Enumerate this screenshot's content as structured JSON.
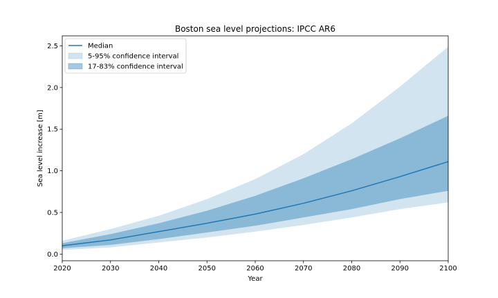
{
  "chart_data": {
    "type": "area",
    "title": "Boston sea level projections: IPCC AR6",
    "xlabel": "Year",
    "ylabel": "Sea level increase [m]",
    "xlim": [
      2020,
      2100
    ],
    "ylim": [
      -0.08,
      2.62
    ],
    "xticks": [
      2020,
      2030,
      2040,
      2050,
      2060,
      2070,
      2080,
      2090,
      2100
    ],
    "yticks": [
      0.0,
      0.5,
      1.0,
      1.5,
      2.0,
      2.5
    ],
    "ytick_labels": [
      "0.0",
      "0.5",
      "1.0",
      "1.5",
      "2.0",
      "2.5"
    ],
    "legend_position": "top-left",
    "x": [
      2020,
      2030,
      2040,
      2050,
      2060,
      2070,
      2080,
      2090,
      2100
    ],
    "series": [
      {
        "name": "5-95% confidence interval",
        "kind": "band",
        "color": "#1f77b4",
        "opacity": 0.2,
        "lower": [
          0.05,
          0.08,
          0.14,
          0.2,
          0.27,
          0.35,
          0.44,
          0.54,
          0.62
        ],
        "upper": [
          0.16,
          0.3,
          0.46,
          0.66,
          0.9,
          1.2,
          1.57,
          2.01,
          2.49
        ]
      },
      {
        "name": "17-83% confidence interval",
        "kind": "band",
        "color": "#1f77b4",
        "opacity": 0.4,
        "lower": [
          0.07,
          0.11,
          0.18,
          0.26,
          0.34,
          0.44,
          0.54,
          0.66,
          0.76
        ],
        "upper": [
          0.13,
          0.24,
          0.37,
          0.52,
          0.7,
          0.91,
          1.14,
          1.39,
          1.66
        ]
      },
      {
        "name": "Median",
        "kind": "line",
        "color": "#1f77b4",
        "values": [
          0.1,
          0.17,
          0.27,
          0.37,
          0.48,
          0.61,
          0.76,
          0.93,
          1.11
        ]
      }
    ]
  }
}
